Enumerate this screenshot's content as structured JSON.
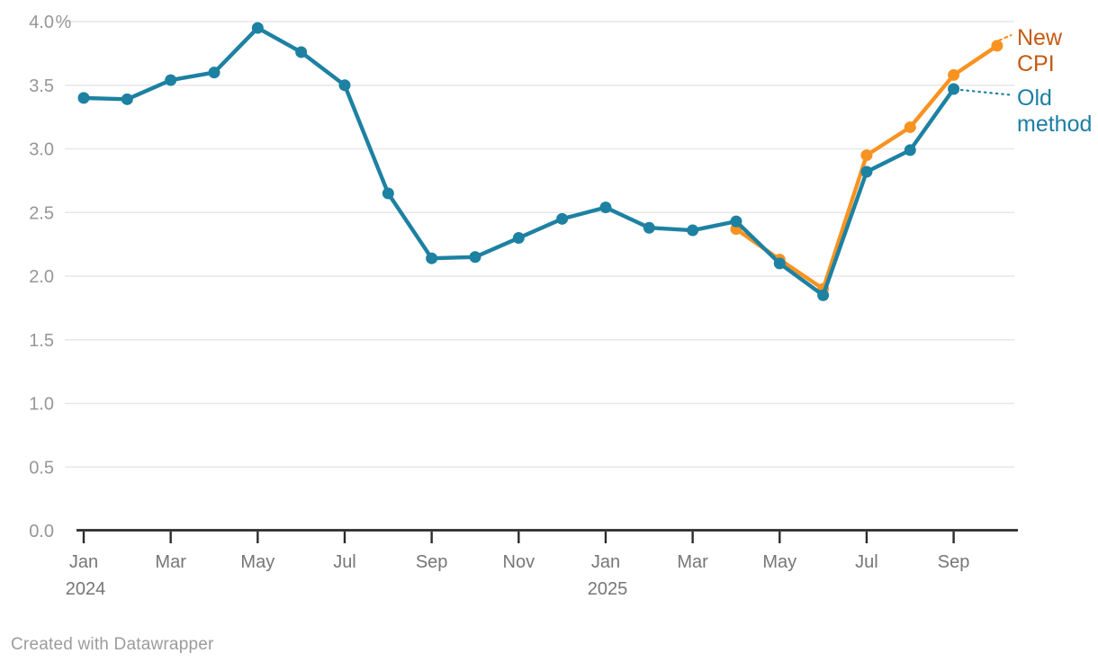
{
  "page": {
    "footer_text": "Created with Datawrapper"
  },
  "colors": {
    "new_cpi_line": "#f79321",
    "old_method_line": "#1d81a2",
    "new_cpi_label": "#c45a13",
    "old_method_label": "#1d7ea4",
    "gridline": "#e7e7e7",
    "axis_line": "#2b2b2b",
    "y_tick_text": "#969696",
    "x_tick_text": "#767676",
    "footer_text": "#9c9c9c"
  },
  "chart_data": {
    "type": "line",
    "title": "",
    "unit": "%",
    "ylim": [
      0,
      4
    ],
    "grid": true,
    "legend": "direct-labels-right",
    "x_categories": [
      "Jan 2024",
      "Feb 2024",
      "Mar 2024",
      "Apr 2024",
      "May 2024",
      "Jun 2024",
      "Jul 2024",
      "Aug 2024",
      "Sep 2024",
      "Oct 2024",
      "Nov 2024",
      "Dec 2024",
      "Jan 2025",
      "Feb 2025",
      "Mar 2025",
      "Apr 2025",
      "May 2025",
      "Jun 2025",
      "Jul 2025",
      "Aug 2025",
      "Sep 2025",
      "Oct 2025"
    ],
    "series": [
      {
        "name": "New CPI",
        "color": "#f79321",
        "label_color": "#c45a13",
        "label_lines": [
          "New",
          "CPI"
        ],
        "values": [
          null,
          null,
          null,
          null,
          null,
          null,
          null,
          null,
          null,
          null,
          null,
          null,
          null,
          null,
          null,
          2.37,
          2.13,
          1.9,
          2.95,
          3.17,
          3.58,
          3.81
        ]
      },
      {
        "name": "Old method",
        "color": "#1d81a2",
        "label_color": "#1d7ea4",
        "label_lines": [
          "Old",
          "method"
        ],
        "values": [
          3.4,
          3.39,
          3.54,
          3.6,
          3.95,
          3.76,
          3.5,
          2.65,
          2.14,
          2.15,
          2.3,
          2.45,
          2.54,
          2.38,
          2.36,
          2.43,
          2.1,
          1.85,
          2.82,
          2.99,
          3.47,
          null
        ]
      }
    ],
    "y_axis": {
      "tick_values": [
        0,
        0.5,
        1,
        1.5,
        2,
        2.5,
        3,
        3.5,
        4
      ],
      "tick_labels": [
        "0.0",
        "0.5",
        "1.0",
        "1.5",
        "2.0",
        "2.5",
        "3.0",
        "3.5",
        "4.0"
      ],
      "top_suffix": "%"
    },
    "x_axis": {
      "ticks": [
        {
          "index": 0,
          "label": "Jan",
          "year": "2024"
        },
        {
          "index": 2,
          "label": "Mar"
        },
        {
          "index": 4,
          "label": "May"
        },
        {
          "index": 6,
          "label": "Jul"
        },
        {
          "index": 8,
          "label": "Sep"
        },
        {
          "index": 10,
          "label": "Nov"
        },
        {
          "index": 12,
          "label": "Jan",
          "year": "2025"
        },
        {
          "index": 14,
          "label": "Mar"
        },
        {
          "index": 16,
          "label": "May"
        },
        {
          "index": 18,
          "label": "Jul"
        },
        {
          "index": 20,
          "label": "Sep"
        }
      ]
    }
  }
}
